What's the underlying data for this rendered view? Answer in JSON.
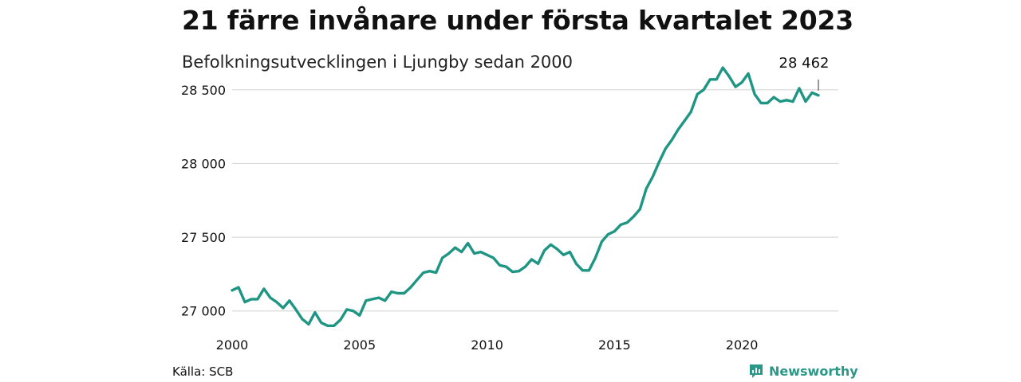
{
  "header": {
    "title": "21 färre invånare under första kvartalet 2023",
    "subtitle": "Befolkningsutvecklingen i Ljungby sedan 2000"
  },
  "footer": {
    "source": "Källa: SCB",
    "brand": "Newsworthy",
    "brand_icon": "bar-chart-speech-bubble-icon",
    "brand_color": "#2a9886"
  },
  "chart_data": {
    "type": "line",
    "title": "21 färre invånare under första kvartalet 2023",
    "subtitle": "Befolkningsutvecklingen i Ljungby sedan 2000",
    "xlabel": "",
    "ylabel": "",
    "x_tick_labels": [
      "2000",
      "2005",
      "2010",
      "2015",
      "2020"
    ],
    "y_tick_labels": [
      "27 000",
      "27 500",
      "28 000",
      "28 500"
    ],
    "y_ticks": [
      27000,
      27500,
      28000,
      28500
    ],
    "x_ticks": [
      2000,
      2005,
      2010,
      2015,
      2020
    ],
    "xlim": [
      2000,
      2023.0
    ],
    "ylim": [
      26950,
      28650
    ],
    "grid": "horizontal",
    "line_color": "#1f9584",
    "annotation": {
      "label": "28 462",
      "x": 2023.0,
      "y": 28462
    },
    "series": [
      {
        "x": [
          2000.0,
          2000.25,
          2000.5,
          2000.75,
          2001.0,
          2001.25,
          2001.5,
          2001.75,
          2002.0,
          2002.25,
          2002.5,
          2002.75,
          2003.0,
          2003.25,
          2003.5,
          2003.75,
          2004.0,
          2004.25,
          2004.5,
          2004.75,
          2005.0,
          2005.25,
          2005.5,
          2005.75,
          2006.0,
          2006.25,
          2006.5,
          2006.75,
          2007.0,
          2007.25,
          2007.5,
          2007.75,
          2008.0,
          2008.25,
          2008.5,
          2008.75,
          2009.0,
          2009.25,
          2009.5,
          2009.75,
          2010.0,
          2010.25,
          2010.5,
          2010.75,
          2011.0,
          2011.25,
          2011.5,
          2011.75,
          2012.0,
          2012.25,
          2012.5,
          2012.75,
          2013.0,
          2013.25,
          2013.5,
          2013.75,
          2014.0,
          2014.25,
          2014.5,
          2014.75,
          2015.0,
          2015.25,
          2015.5,
          2015.75,
          2016.0,
          2016.25,
          2016.5,
          2016.75,
          2017.0,
          2017.25,
          2017.5,
          2017.75,
          2018.0,
          2018.25,
          2018.5,
          2018.75,
          2019.0,
          2019.25,
          2019.5,
          2019.75,
          2020.0,
          2020.25,
          2020.5,
          2020.75,
          2021.0,
          2021.25,
          2021.5,
          2021.75,
          2022.0,
          2022.25,
          2022.5,
          2022.75,
          2023.0
        ],
        "values": [
          27140,
          27160,
          27060,
          27080,
          27080,
          27150,
          27090,
          27060,
          27020,
          27070,
          27010,
          26945,
          26910,
          26990,
          26920,
          26900,
          26900,
          26940,
          27010,
          27000,
          26970,
          27070,
          27080,
          27090,
          27070,
          27130,
          27120,
          27120,
          27160,
          27210,
          27260,
          27270,
          27260,
          27360,
          27390,
          27430,
          27400,
          27460,
          27390,
          27400,
          27380,
          27360,
          27310,
          27300,
          27265,
          27270,
          27300,
          27350,
          27320,
          27410,
          27450,
          27420,
          27380,
          27400,
          27320,
          27275,
          27275,
          27360,
          27470,
          27520,
          27540,
          27585,
          27600,
          27640,
          27690,
          27830,
          27910,
          28010,
          28100,
          28160,
          28230,
          28290,
          28350,
          28470,
          28500,
          28570,
          28570,
          28650,
          28590,
          28520,
          28550,
          28610,
          28470,
          28410,
          28410,
          28450,
          28420,
          28430,
          28420,
          28510,
          28420,
          28480,
          28462
        ]
      }
    ]
  }
}
